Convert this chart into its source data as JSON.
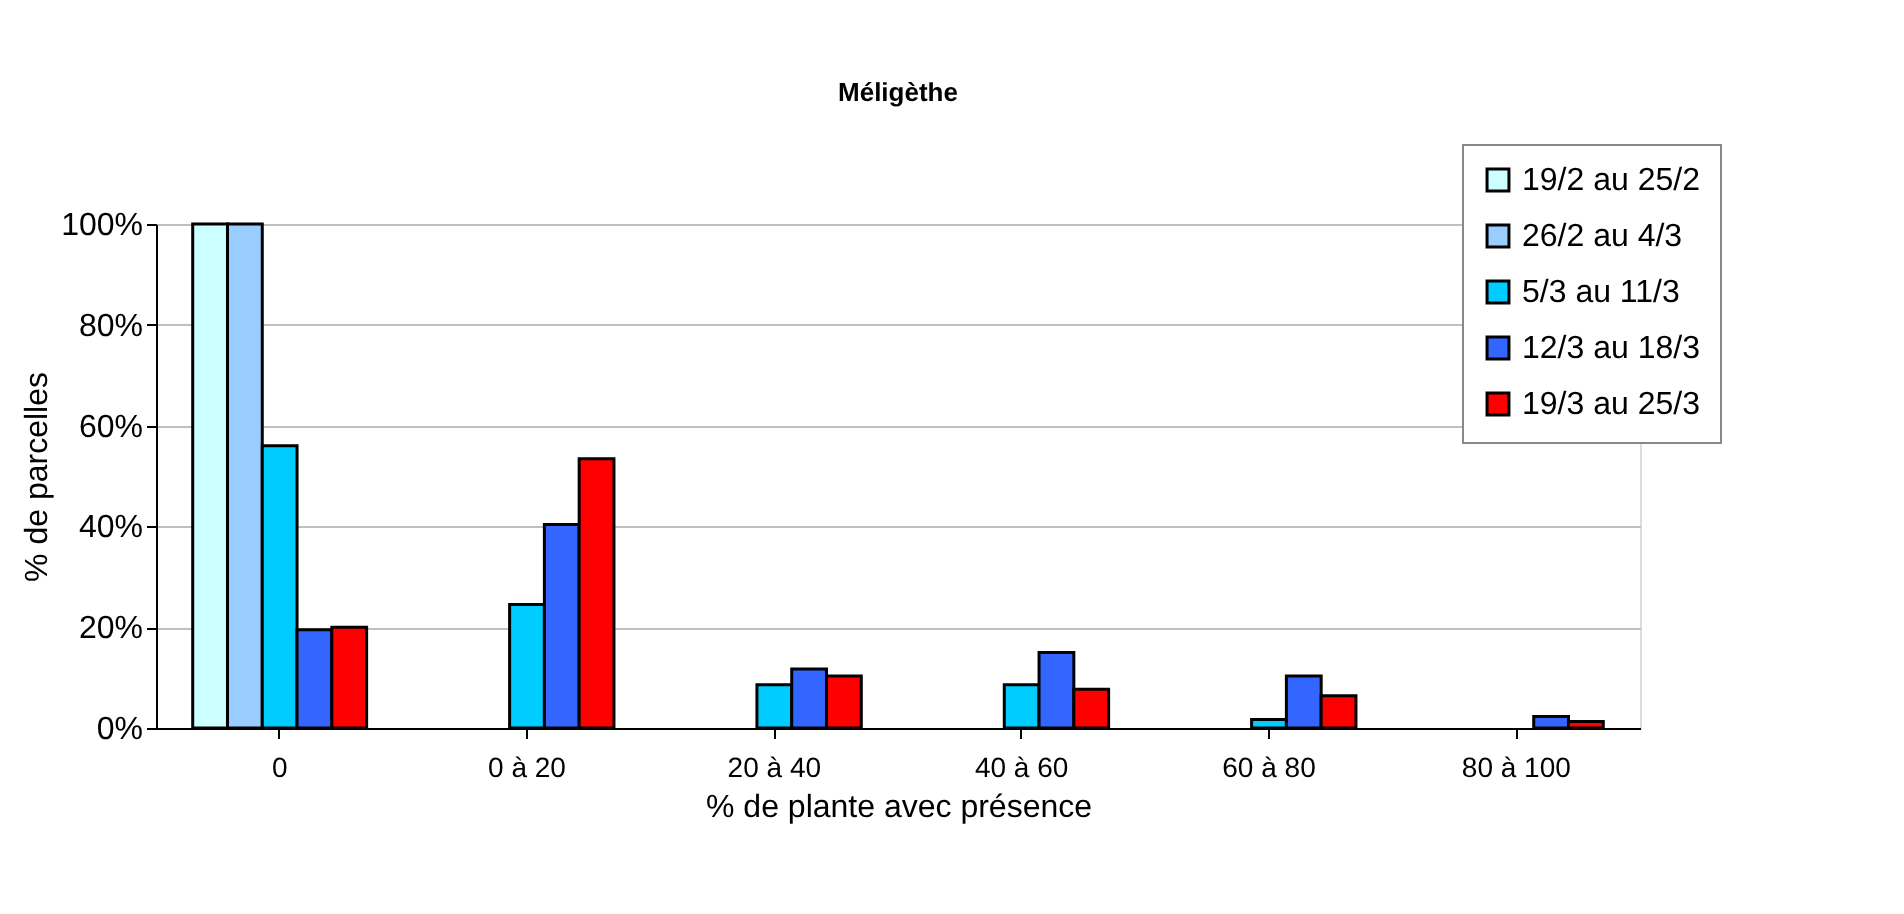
{
  "chart_data": {
    "type": "bar",
    "title": "Méligèthe",
    "xlabel": "% de plante avec présence",
    "ylabel": "% de parcelles",
    "categories": [
      "0",
      "0 à 20",
      "20 à 40",
      "40 à 60",
      "60 à 80",
      "80 à 100"
    ],
    "series": [
      {
        "name": "19/2 au 25/2",
        "color": "#ccffff",
        "values": [
          100,
          null,
          null,
          null,
          null,
          null
        ]
      },
      {
        "name": "26/2 au 4/3",
        "color": "#99ccff",
        "values": [
          100,
          null,
          null,
          null,
          null,
          null
        ]
      },
      {
        "name": "5/3 au 11/3",
        "color": "#00ccff",
        "values": [
          56,
          24.5,
          8.6,
          8.6,
          1.7,
          null
        ]
      },
      {
        "name": "12/3 au 18/3",
        "color": "#3366ff",
        "values": [
          19.5,
          40.4,
          11.7,
          15,
          10.3,
          2.3
        ]
      },
      {
        "name": "19/3 au 25/3",
        "color": "#ff0000",
        "values": [
          20,
          53.4,
          10.3,
          7.7,
          6.4,
          1.3
        ]
      }
    ],
    "ylim": [
      0,
      100
    ],
    "yticks": [
      {
        "value": 0,
        "label": "0%"
      },
      {
        "value": 20,
        "label": "20%"
      },
      {
        "value": 40,
        "label": "40%"
      },
      {
        "value": 60,
        "label": "60%"
      },
      {
        "value": 80,
        "label": "80%"
      },
      {
        "value": 100,
        "label": "100%"
      }
    ],
    "grid": "y",
    "legend": "top right"
  }
}
